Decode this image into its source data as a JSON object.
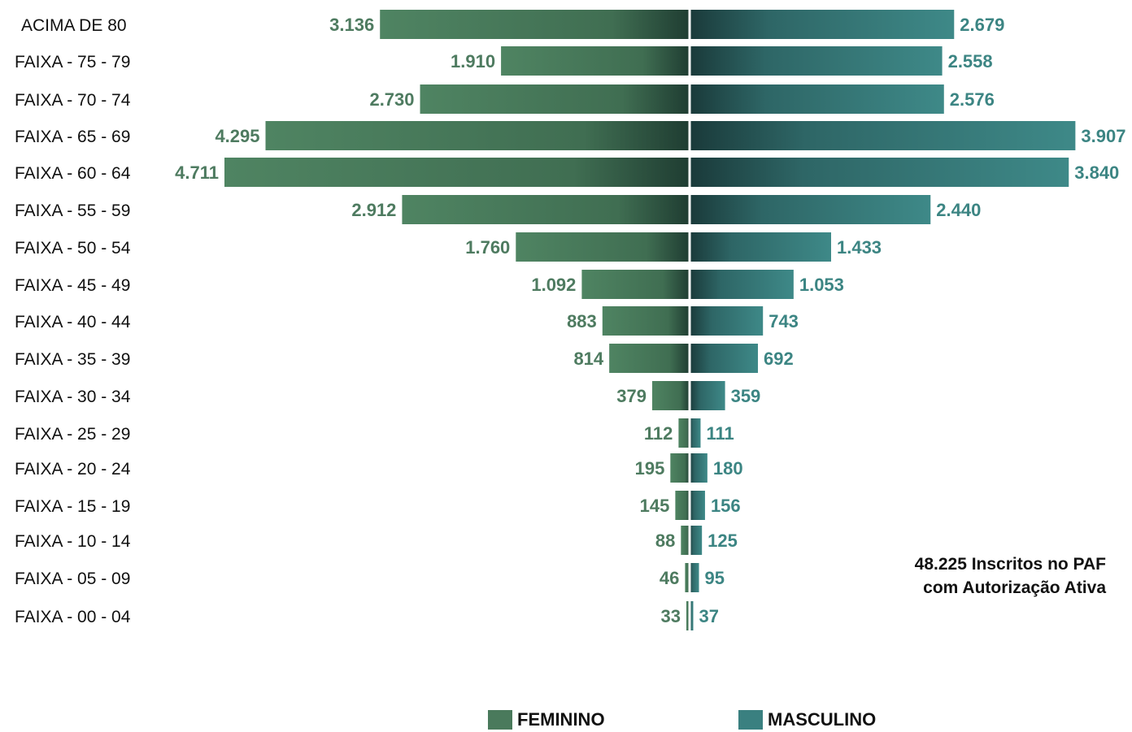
{
  "chart_data": {
    "type": "bar",
    "orientation": "horizontal-diverging",
    "categories": [
      "ACIMA DE 80",
      "FAIXA - 75 - 79",
      "FAIXA - 70 - 74",
      "FAIXA - 65 - 69",
      "FAIXA - 60 - 64",
      "FAIXA - 55 - 59",
      "FAIXA - 50 - 54",
      "FAIXA - 45 - 49",
      "FAIXA - 40 - 44",
      "FAIXA - 35 - 39",
      "FAIXA - 30 - 34",
      "FAIXA - 25 - 29",
      "FAIXA - 20 - 24",
      "FAIXA - 15 - 19",
      "FAIXA - 10 - 14",
      "FAIXA - 05 - 09",
      "FAIXA - 00 - 04"
    ],
    "series": [
      {
        "name": "FEMININO",
        "side": "left",
        "color": "#4a7a5c",
        "label_color": "#4e7b60",
        "values": [
          3136,
          1910,
          2730,
          4295,
          4711,
          2912,
          1760,
          1092,
          883,
          814,
          379,
          112,
          195,
          145,
          88,
          46,
          33
        ],
        "labels": [
          "3.136",
          "1.910",
          "2.730",
          "4.295",
          "4.711",
          "2.912",
          "1.760",
          "1.092",
          "883",
          "814",
          "379",
          "112",
          "195",
          "145",
          "88",
          "46",
          "33"
        ]
      },
      {
        "name": "MASCULINO",
        "side": "right",
        "color": "#3a8080",
        "label_color": "#3c8583",
        "values": [
          2679,
          2558,
          2576,
          3907,
          3840,
          2440,
          1433,
          1053,
          743,
          692,
          359,
          111,
          180,
          156,
          125,
          95,
          37
        ],
        "labels": [
          "2.679",
          "2.558",
          "2.576",
          "3.907",
          "3.840",
          "2.440",
          "1.433",
          "1.053",
          "743",
          "692",
          "359",
          "111",
          "180",
          "156",
          "125",
          "95",
          "37"
        ]
      }
    ],
    "annotation": [
      "48.225 Inscritos no PAF",
      "com Autorização Ativa"
    ],
    "grid": false,
    "legend_position": "bottom"
  }
}
